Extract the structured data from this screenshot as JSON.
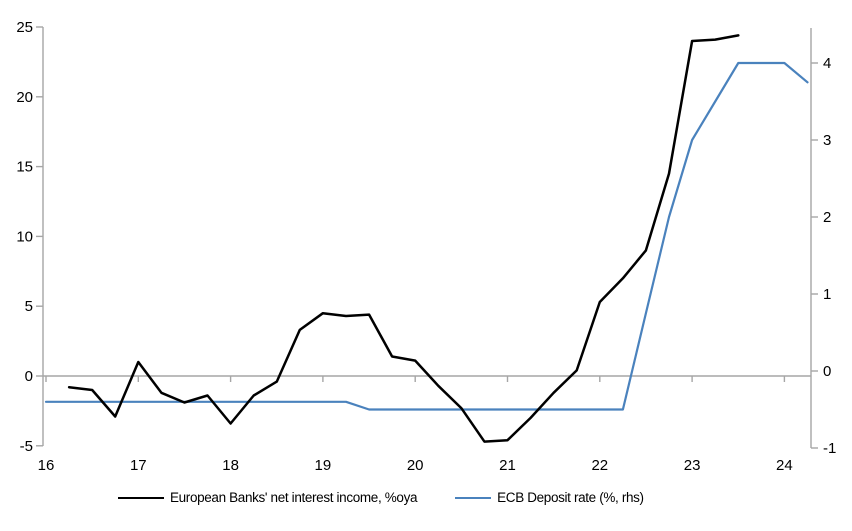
{
  "chart_data": {
    "type": "line",
    "title": "",
    "xlabel": "",
    "ylabel_left": "",
    "ylabel_right": "",
    "x_tick_labels": [
      "16",
      "17",
      "18",
      "19",
      "20",
      "21",
      "22",
      "23",
      "24"
    ],
    "x_tick_values": [
      16,
      17,
      18,
      19,
      20,
      21,
      22,
      23,
      24
    ],
    "left_axis": {
      "ticks": [
        25,
        20,
        15,
        10,
        5,
        0,
        -5
      ],
      "range": [
        -5,
        25
      ]
    },
    "right_axis": {
      "ticks": [
        4,
        3,
        2,
        1,
        0,
        -1
      ],
      "range": [
        -1,
        4
      ]
    },
    "grid": "zero-line-only",
    "legend_position": "bottom",
    "series": [
      {
        "name": "European Banks' net interest income, %oya",
        "axis": "left",
        "color": "#000000",
        "width": 2.5,
        "x": [
          16.25,
          16.5,
          16.75,
          17.0,
          17.25,
          17.5,
          17.75,
          18.0,
          18.25,
          18.5,
          18.75,
          19.0,
          19.25,
          19.5,
          19.75,
          20.0,
          20.25,
          20.5,
          20.75,
          21.0,
          21.25,
          21.5,
          21.75,
          22.0,
          22.25,
          22.5,
          22.75,
          23.0,
          23.25,
          23.5
        ],
        "values": [
          -0.8,
          -1.0,
          -2.9,
          1.0,
          -1.2,
          -1.9,
          -1.4,
          -3.4,
          -1.4,
          -0.4,
          3.3,
          4.5,
          4.3,
          4.4,
          1.4,
          1.1,
          -0.7,
          -2.3,
          -4.7,
          -4.6,
          -3.0,
          -1.2,
          0.4,
          5.3,
          7.0,
          9.0,
          14.5,
          24.0,
          24.1,
          24.4
        ]
      },
      {
        "name": "ECB Deposit rate (%, rhs)",
        "axis": "right",
        "color": "#4a82bd",
        "width": 2.2,
        "x": [
          16.0,
          16.25,
          16.5,
          16.75,
          17.0,
          17.25,
          17.5,
          17.75,
          18.0,
          18.25,
          18.5,
          18.75,
          19.0,
          19.25,
          19.5,
          19.75,
          20.0,
          20.25,
          20.5,
          20.75,
          21.0,
          21.25,
          21.5,
          21.75,
          22.0,
          22.25,
          22.5,
          22.75,
          23.0,
          23.25,
          23.5,
          23.75,
          24.0,
          24.25
        ],
        "values": [
          -0.4,
          -0.4,
          -0.4,
          -0.4,
          -0.4,
          -0.4,
          -0.4,
          -0.4,
          -0.4,
          -0.4,
          -0.4,
          -0.4,
          -0.4,
          -0.4,
          -0.5,
          -0.5,
          -0.5,
          -0.5,
          -0.5,
          -0.5,
          -0.5,
          -0.5,
          -0.5,
          -0.5,
          -0.5,
          -0.5,
          0.75,
          2.0,
          3.0,
          3.5,
          4.0,
          4.0,
          4.0,
          3.75
        ]
      }
    ]
  },
  "legend": {
    "series1": "European Banks' net interest income, %oya",
    "series2": "ECB Deposit rate (%, rhs)"
  },
  "colors": {
    "axis": "#a6a6a6",
    "zero_line": "#a6a6a6",
    "series_nii": "#000000",
    "series_ecb": "#4a82bd",
    "text": "#000000",
    "background": "#ffffff"
  }
}
